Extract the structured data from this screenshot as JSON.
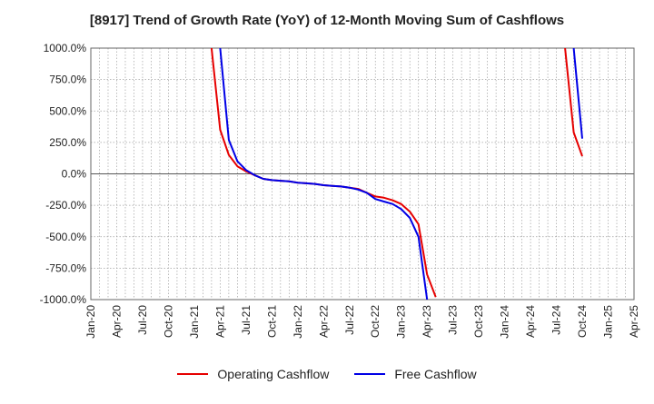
{
  "chart_data": {
    "type": "line",
    "title": "[8917]  Trend of Growth Rate (YoY) of 12-Month Moving Sum of Cashflows",
    "xlabel": "",
    "ylabel": "",
    "x_ticks": [
      "Jan-20",
      "Apr-20",
      "Jul-20",
      "Oct-20",
      "Jan-21",
      "Apr-21",
      "Jul-21",
      "Oct-21",
      "Jan-22",
      "Apr-22",
      "Jul-22",
      "Oct-22",
      "Jan-23",
      "Apr-23",
      "Jul-23",
      "Oct-23",
      "Jan-24",
      "Apr-24",
      "Jul-24",
      "Oct-24",
      "Jan-25",
      "Apr-25"
    ],
    "y_ticks": [
      "1000.0%",
      "750.0%",
      "500.0%",
      "250.0%",
      "0.0%",
      "-250.0%",
      "-500.0%",
      "-750.0%",
      "-1000.0%"
    ],
    "ylim": [
      -1000,
      1000
    ],
    "y_unit": "%",
    "grid": true,
    "legend_position": "bottom",
    "series": [
      {
        "name": "Operating Cashflow",
        "color": "#e60000",
        "x": [
          "2021-03",
          "2021-04",
          "2021-05",
          "2021-06",
          "2021-07",
          "2021-08",
          "2021-09",
          "2021-10",
          "2021-11",
          "2021-12",
          "2022-01",
          "2022-02",
          "2022-03",
          "2022-04",
          "2022-05",
          "2022-06",
          "2022-07",
          "2022-08",
          "2022-09",
          "2022-10",
          "2022-11",
          "2022-12",
          "2023-01",
          "2023-02",
          "2023-03",
          "2023-04",
          "2023-05"
        ],
        "values": [
          1000,
          350,
          150,
          60,
          20,
          -10,
          -40,
          -50,
          -55,
          -60,
          -70,
          -75,
          -80,
          -90,
          -95,
          -100,
          -110,
          -120,
          -150,
          -180,
          -190,
          -210,
          -240,
          -300,
          -400,
          -800,
          -980
        ]
      },
      {
        "name": "Free Cashflow",
        "color": "#0000e6",
        "x": [
          "2021-04",
          "2021-05",
          "2021-06",
          "2021-07",
          "2021-08",
          "2021-09",
          "2021-10",
          "2021-11",
          "2021-12",
          "2022-01",
          "2022-02",
          "2022-03",
          "2022-04",
          "2022-05",
          "2022-06",
          "2022-07",
          "2022-08",
          "2022-09",
          "2022-10",
          "2022-11",
          "2022-12",
          "2023-01",
          "2023-02",
          "2023-03",
          "2023-04"
        ],
        "values": [
          1000,
          270,
          100,
          30,
          -10,
          -40,
          -50,
          -55,
          -60,
          -70,
          -75,
          -80,
          -90,
          -95,
          -100,
          -110,
          -125,
          -150,
          -200,
          -220,
          -240,
          -280,
          -350,
          -500,
          -1000
        ]
      },
      {
        "name": "Operating Cashflow",
        "color": "#e60000",
        "x": [
          "2024-08",
          "2024-09",
          "2024-10"
        ],
        "values": [
          1000,
          330,
          140
        ]
      },
      {
        "name": "Free Cashflow",
        "color": "#0000e6",
        "x": [
          "2024-09",
          "2024-10"
        ],
        "values": [
          1000,
          280
        ]
      }
    ],
    "legend": [
      {
        "name": "Operating Cashflow",
        "color": "#e60000"
      },
      {
        "name": "Free Cashflow",
        "color": "#0000e6"
      }
    ]
  }
}
